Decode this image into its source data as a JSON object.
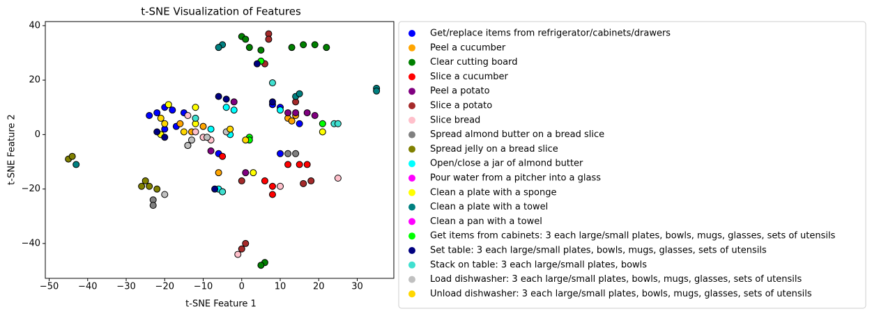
{
  "chart_data": {
    "type": "scatter",
    "title": "t-SNE Visualization of Features",
    "x_label": "t-SNE Feature 1",
    "y_label": "t-SNE Feature 2",
    "xlim": [
      -51,
      39.5
    ],
    "ylim": [
      -52.8,
      41.5
    ],
    "xticks": [
      {
        "value": -50,
        "label": "−50"
      },
      {
        "value": -40,
        "label": "−40"
      },
      {
        "value": -30,
        "label": "−30"
      },
      {
        "value": -20,
        "label": "−20"
      },
      {
        "value": -10,
        "label": "−10"
      },
      0,
      10,
      20,
      30
    ],
    "yticks": [
      {
        "value": -40,
        "label": "−40"
      },
      {
        "value": -20,
        "label": "−20"
      },
      0,
      20,
      40
    ],
    "series": [
      {
        "name": "Get/replace items from refrigerator/cabinets/drawers",
        "color": "#0000ff",
        "x": [
          -22,
          -20,
          -18,
          -24,
          -15,
          -6,
          8,
          10,
          15,
          10,
          -20,
          -17
        ],
        "y": [
          8,
          10,
          9,
          7,
          8,
          -7,
          11,
          10,
          4,
          -7,
          2,
          3
        ]
      },
      {
        "name": "Peel a cucumber",
        "color": "#ffa500",
        "x": [
          -13,
          -16,
          12,
          13,
          14,
          -6,
          -10
        ],
        "y": [
          1,
          4,
          6,
          5,
          7,
          -14,
          3
        ]
      },
      {
        "name": "Clear cutting board",
        "color": "#008000",
        "x": [
          0,
          2,
          5,
          13,
          16,
          19,
          22,
          6,
          5,
          1
        ],
        "y": [
          36,
          32,
          31,
          32,
          33,
          33,
          32,
          -47,
          -48,
          35
        ]
      },
      {
        "name": "Slice a cucumber",
        "color": "#ff0000",
        "x": [
          6,
          8,
          8,
          15,
          17,
          12,
          -5
        ],
        "y": [
          -17,
          -19,
          -22,
          -11,
          -11,
          -11,
          -8
        ]
      },
      {
        "name": "Peel a potato",
        "color": "#800080",
        "x": [
          17,
          19,
          14,
          -8,
          -2,
          1,
          12
        ],
        "y": [
          8,
          7,
          8,
          -6,
          12,
          -14,
          8
        ]
      },
      {
        "name": "Slice a potato",
        "color": "#a52a2a",
        "x": [
          7,
          7,
          6,
          0,
          18,
          16,
          1,
          0,
          14
        ],
        "y": [
          37,
          35,
          26,
          -17,
          -17,
          -18,
          -40,
          -42,
          12
        ]
      },
      {
        "name": "Slice bread",
        "color": "#ffc0cb",
        "x": [
          -10,
          -8,
          -12,
          10,
          25,
          -1,
          -14
        ],
        "y": [
          -1,
          -2,
          1,
          -19,
          -16,
          -44,
          7
        ]
      },
      {
        "name": "Spread almond butter on a bread slice",
        "color": "#808080",
        "x": [
          12,
          14,
          -23,
          -23,
          -14
        ],
        "y": [
          -7,
          -7,
          -24,
          -26,
          -4
        ]
      },
      {
        "name": "Spread jelly on a bread slice",
        "color": "#808000",
        "x": [
          -45,
          -44,
          -25,
          -24,
          -22,
          -26
        ],
        "y": [
          -9,
          -8,
          -17,
          -19,
          -20,
          -19
        ]
      },
      {
        "name": "Open/close a jar of almond butter",
        "color": "#00ffff",
        "x": [
          -4,
          -2,
          10,
          -5,
          -6,
          -8,
          -3
        ],
        "y": [
          10,
          9,
          9,
          -21,
          -20,
          2,
          0
        ]
      },
      {
        "name": "Pour water from a pitcher into a glass",
        "color": "#ff00ff",
        "x": [],
        "y": []
      },
      {
        "name": "Clean a plate with a sponge",
        "color": "#ffff00",
        "x": [
          -19,
          -21,
          -12,
          21,
          3,
          -12
        ],
        "y": [
          11,
          0,
          10,
          1,
          -14,
          4
        ]
      },
      {
        "name": "Clean a plate with a towel",
        "color": "#008080",
        "x": [
          -5,
          -6,
          14,
          15,
          35,
          35,
          -43
        ],
        "y": [
          33,
          32,
          14,
          15,
          17,
          16,
          -11
        ]
      },
      {
        "name": "Clean a pan with a towel",
        "color": "#ff00ff",
        "x": [],
        "y": []
      },
      {
        "name": "Get items from cabinets: 3 each large/small plates, bowls, mugs, glasses, sets of utensils",
        "color": "#00ff00",
        "x": [
          2,
          2,
          21,
          5
        ],
        "y": [
          -1,
          -2,
          4,
          27
        ]
      },
      {
        "name": "Set table: 3 each large/small plates, bowls, mugs, glasses, sets of utensils",
        "color": "#000080",
        "x": [
          -20,
          -6,
          -4,
          8,
          -22,
          -7,
          4
        ],
        "y": [
          -1,
          14,
          13,
          12,
          1,
          -20,
          26
        ]
      },
      {
        "name": "Stack on table: 3 each large/small plates, bowls",
        "color": "#40e0d0",
        "x": [
          -5,
          8,
          24,
          25,
          -12
        ],
        "y": [
          -21,
          19,
          4,
          4,
          6
        ]
      },
      {
        "name": "Load dishwasher: 3 each large/small plates, bowls, mugs, glasses, sets of utensils",
        "color": "#c0c0c0",
        "x": [
          -14,
          -13,
          -20,
          -9,
          -4
        ],
        "y": [
          -4,
          -2,
          -22,
          -1,
          1
        ]
      },
      {
        "name": "Unload dishwasher: 3 each large/small plates, bowls, mugs, glasses, sets of utensils",
        "color": "#ffd700",
        "x": [
          -15,
          -3,
          -21,
          -20,
          1
        ],
        "y": [
          1,
          2,
          6,
          4,
          -2
        ]
      }
    ]
  }
}
